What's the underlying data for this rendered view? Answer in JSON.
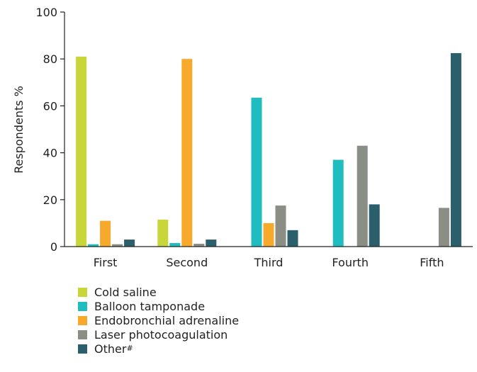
{
  "chart_data": {
    "type": "bar",
    "categories": [
      "First",
      "Second",
      "Third",
      "Fourth",
      "Fifth"
    ],
    "series": [
      {
        "name": "Cold saline",
        "color": "#c8d63a",
        "values": [
          81,
          11.5,
          null,
          null,
          null
        ]
      },
      {
        "name": "Balloon tamponade",
        "color": "#1fbdbf",
        "values": [
          1,
          1.5,
          63.5,
          37,
          null
        ]
      },
      {
        "name": "Endobronchial adrenaline",
        "color": "#f7a92b",
        "values": [
          11,
          80,
          10,
          null,
          null
        ]
      },
      {
        "name": "Laser photocoagulation",
        "color": "#8a8e84",
        "values": [
          1,
          1.2,
          17.5,
          43,
          16.5
        ]
      },
      {
        "name": "Other",
        "name_sup": "#",
        "color": "#2b5f6b",
        "values": [
          3,
          3,
          7,
          18,
          82.5
        ]
      }
    ],
    "ylabel": "Respondents  %",
    "ylim": [
      0,
      100
    ],
    "yticks": [
      "0",
      "20",
      "40",
      "60",
      "80",
      "100"
    ],
    "grid": false,
    "legend_position": "bottom"
  }
}
